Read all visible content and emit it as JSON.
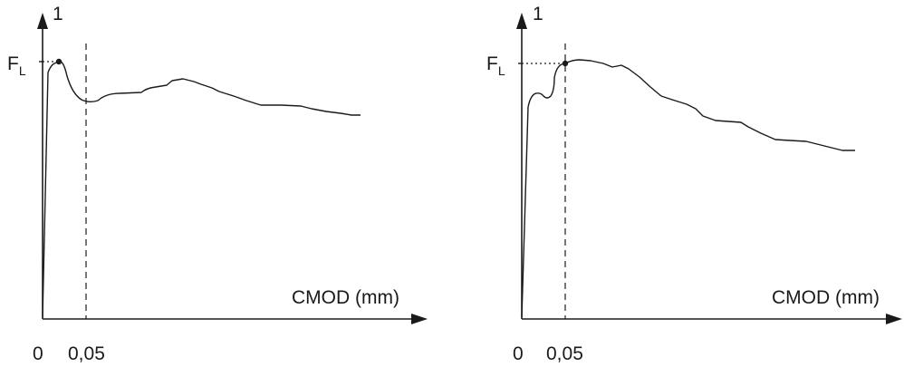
{
  "panels": [
    {
      "id": "left",
      "y_axis_label": "1",
      "x_axis_label": "CMOD (mm)",
      "fl_label_main": "F",
      "fl_label_sub": "L",
      "tick_origin": "0",
      "tick_limit": "0,05"
    },
    {
      "id": "right",
      "y_axis_label": "1",
      "x_axis_label": "CMOD (mm)",
      "fl_label_main": "F",
      "fl_label_sub": "L",
      "tick_origin": "0",
      "tick_limit": "0,05"
    }
  ]
}
